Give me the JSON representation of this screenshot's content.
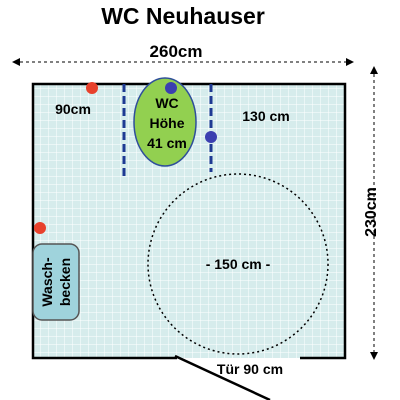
{
  "title": "WC Neuhauser",
  "dimensions": {
    "width_label": "260cm",
    "height_label": "230cm",
    "left_clearance_label": "90cm",
    "right_clearance_label": "130 cm",
    "turning_circle_label": "- 150 cm -",
    "door_label": "Tür 90 cm"
  },
  "toilet": {
    "line1": "WC",
    "line2": "Höhe",
    "line3": "41 cm"
  },
  "sink": {
    "line1": "Wasch-",
    "line2": "becken"
  },
  "colors": {
    "floor": "#d6ecec",
    "tile_grid": "#ffffff",
    "wall": "#000000",
    "toilet_fill": "#92d050",
    "sink_fill": "#9fd3dc",
    "grab_bar": "#1f3a93",
    "red_marker": "#e8412c",
    "blue_marker": "#3b3fb0"
  }
}
